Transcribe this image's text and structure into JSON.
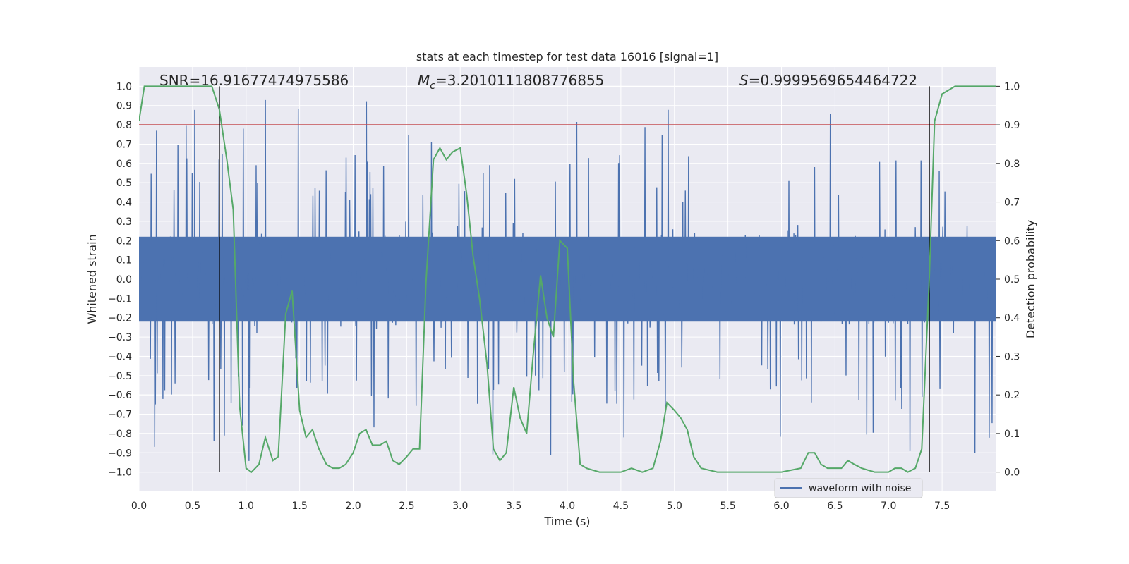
{
  "chart_data": {
    "type": "line",
    "title": "stats at each timestep for test data 16016 [signal=1]",
    "xlabel": "Time (s)",
    "ylabel_left": "Whitened strain",
    "ylabel_right": "Detection probability",
    "xlim": [
      0,
      8.0
    ],
    "ylim_left": [
      -1.1,
      1.1
    ],
    "ylim_right": [
      -0.05,
      1.05
    ],
    "x_ticks": [
      "0.0",
      "0.5",
      "1.0",
      "1.5",
      "2.0",
      "2.5",
      "3.0",
      "3.5",
      "4.0",
      "4.5",
      "5.0",
      "5.5",
      "6.0",
      "6.5",
      "7.0",
      "7.5"
    ],
    "y_ticks_left": [
      "1.0",
      "0.9",
      "0.8",
      "0.7",
      "0.6",
      "0.5",
      "0.4",
      "0.3",
      "0.2",
      "0.1",
      "0.0",
      "−0.1",
      "−0.2",
      "−0.3",
      "−0.4",
      "−0.5",
      "−0.6",
      "−0.7",
      "−0.8",
      "−0.9",
      "−1.0"
    ],
    "y_ticks_right": [
      "1.0",
      "0.9",
      "0.8",
      "0.7",
      "0.6",
      "0.5",
      "0.4",
      "0.3",
      "0.2",
      "0.1",
      "0.0"
    ],
    "annotations": {
      "snr": "SNR=16.91677474975586",
      "mc_symbol": "M",
      "mc_sub": "c",
      "mc_value": "=3.2010111808776855",
      "s_symbol": "S",
      "s_value": "=0.9999569654464722"
    },
    "legend": {
      "label": "waveform with noise",
      "position": "bottom-right"
    },
    "threshold": {
      "value": 0.9,
      "axis": "right",
      "color": "#c44e52"
    },
    "vlines": [
      0.75,
      7.38
    ],
    "series": [
      {
        "name": "waveform with noise",
        "axis": "left",
        "color": "#4c72b0",
        "kind": "noise",
        "typical_peak": 0.4,
        "max_excursion": 1.0
      },
      {
        "name": "detection probability",
        "axis": "right",
        "color": "#55a868",
        "x": [
          0.0,
          0.05,
          0.15,
          0.3,
          0.5,
          0.68,
          0.75,
          0.82,
          0.88,
          0.94,
          1.0,
          1.05,
          1.12,
          1.18,
          1.25,
          1.3,
          1.37,
          1.43,
          1.5,
          1.56,
          1.62,
          1.68,
          1.75,
          1.81,
          1.87,
          1.93,
          2.0,
          2.06,
          2.12,
          2.18,
          2.25,
          2.31,
          2.37,
          2.43,
          2.5,
          2.56,
          2.62,
          2.68,
          2.75,
          2.81,
          2.87,
          2.93,
          3.0,
          3.06,
          3.12,
          3.18,
          3.25,
          3.31,
          3.37,
          3.43,
          3.5,
          3.56,
          3.62,
          3.68,
          3.75,
          3.81,
          3.87,
          3.93,
          4.0,
          4.06,
          4.12,
          4.18,
          4.3,
          4.5,
          4.6,
          4.7,
          4.8,
          4.87,
          4.93,
          5.0,
          5.06,
          5.12,
          5.18,
          5.25,
          5.4,
          6.0,
          6.18,
          6.25,
          6.31,
          6.37,
          6.43,
          6.56,
          6.62,
          6.68,
          6.75,
          6.87,
          7.0,
          7.06,
          7.12,
          7.18,
          7.25,
          7.31,
          7.38,
          7.43,
          7.5,
          7.56,
          7.62,
          7.68,
          7.75,
          7.9,
          8.0
        ],
        "y": [
          0.91,
          1.0,
          1.0,
          1.0,
          1.0,
          1.0,
          0.94,
          0.81,
          0.68,
          0.17,
          0.01,
          0.0,
          0.02,
          0.09,
          0.03,
          0.04,
          0.41,
          0.47,
          0.16,
          0.09,
          0.11,
          0.06,
          0.02,
          0.01,
          0.01,
          0.02,
          0.05,
          0.1,
          0.11,
          0.07,
          0.07,
          0.08,
          0.03,
          0.02,
          0.04,
          0.06,
          0.06,
          0.49,
          0.81,
          0.84,
          0.81,
          0.83,
          0.84,
          0.72,
          0.56,
          0.45,
          0.28,
          0.06,
          0.03,
          0.05,
          0.22,
          0.14,
          0.1,
          0.3,
          0.51,
          0.4,
          0.35,
          0.6,
          0.58,
          0.23,
          0.02,
          0.01,
          0.0,
          0.0,
          0.01,
          0.0,
          0.01,
          0.08,
          0.18,
          0.16,
          0.14,
          0.11,
          0.04,
          0.01,
          0.0,
          0.0,
          0.01,
          0.05,
          0.05,
          0.02,
          0.01,
          0.01,
          0.03,
          0.02,
          0.01,
          0.0,
          0.0,
          0.01,
          0.01,
          0.0,
          0.01,
          0.06,
          0.5,
          0.91,
          0.98,
          0.99,
          1.0,
          1.0,
          1.0,
          1.0,
          1.0
        ]
      }
    ]
  }
}
